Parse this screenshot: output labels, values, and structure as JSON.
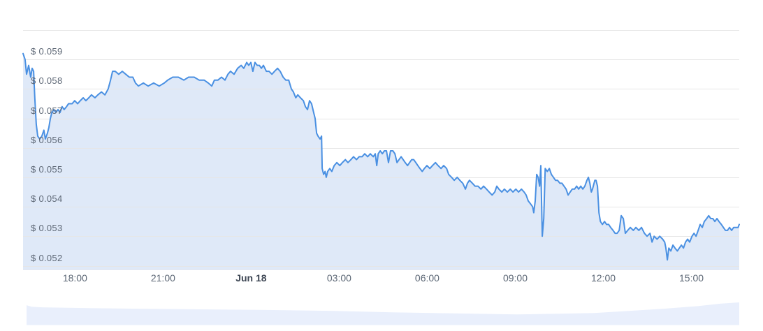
{
  "page": {
    "background": "#ffffff"
  },
  "chart_data": {
    "type": "area",
    "title": "",
    "legend": "none",
    "grid": "on",
    "currency_prefix": "$",
    "y_axis": {
      "min": 0.0519,
      "max": 0.06,
      "gridline_prices": [
        0.052,
        0.053,
        0.054,
        0.055,
        0.056,
        0.057,
        0.058,
        0.059,
        0.06
      ],
      "labels": [
        {
          "price": 0.059,
          "text": "$ 0.059"
        },
        {
          "price": 0.058,
          "text": "$ 0.058"
        },
        {
          "price": 0.057,
          "text": "$ 0.057"
        },
        {
          "price": 0.056,
          "text": "$ 0.056"
        },
        {
          "price": 0.055,
          "text": "$ 0.055"
        },
        {
          "price": 0.054,
          "text": "$ 0.054"
        },
        {
          "price": 0.053,
          "text": "$ 0.053"
        },
        {
          "price": 0.052,
          "text": "$ 0.052"
        }
      ]
    },
    "x_axis": {
      "total_hours": 24.4,
      "ticks": [
        {
          "hours": 1.77,
          "label": "18:00",
          "bold": false
        },
        {
          "hours": 4.77,
          "label": "21:00",
          "bold": false
        },
        {
          "hours": 7.77,
          "label": "Jun 18",
          "bold": true
        },
        {
          "hours": 10.77,
          "label": "03:00",
          "bold": false
        },
        {
          "hours": 13.77,
          "label": "06:00",
          "bold": false
        },
        {
          "hours": 16.77,
          "label": "09:00",
          "bold": false
        },
        {
          "hours": 19.77,
          "label": "12:00",
          "bold": false
        },
        {
          "hours": 22.77,
          "label": "15:00",
          "bold": false
        }
      ]
    },
    "series": {
      "name": "price",
      "points": [
        [
          0.0,
          0.0592
        ],
        [
          0.07,
          0.059
        ],
        [
          0.12,
          0.0585
        ],
        [
          0.19,
          0.0588
        ],
        [
          0.26,
          0.0584
        ],
        [
          0.31,
          0.0587
        ],
        [
          0.36,
          0.0586
        ],
        [
          0.4,
          0.0577
        ],
        [
          0.45,
          0.0568
        ],
        [
          0.5,
          0.0564
        ],
        [
          0.57,
          0.0563
        ],
        [
          0.64,
          0.0564
        ],
        [
          0.71,
          0.0566
        ],
        [
          0.76,
          0.0563
        ],
        [
          0.83,
          0.0565
        ],
        [
          0.88,
          0.0567
        ],
        [
          0.93,
          0.057
        ],
        [
          0.98,
          0.0572
        ],
        [
          1.05,
          0.0573
        ],
        [
          1.12,
          0.0572
        ],
        [
          1.19,
          0.0573
        ],
        [
          1.26,
          0.0572
        ],
        [
          1.33,
          0.0574
        ],
        [
          1.4,
          0.0573
        ],
        [
          1.48,
          0.0574
        ],
        [
          1.55,
          0.0575
        ],
        [
          1.67,
          0.0575
        ],
        [
          1.76,
          0.0576
        ],
        [
          1.86,
          0.0575
        ],
        [
          1.95,
          0.0576
        ],
        [
          2.05,
          0.0577
        ],
        [
          2.14,
          0.0576
        ],
        [
          2.24,
          0.0577
        ],
        [
          2.33,
          0.0578
        ],
        [
          2.45,
          0.0577
        ],
        [
          2.55,
          0.0578
        ],
        [
          2.67,
          0.0579
        ],
        [
          2.79,
          0.0578
        ],
        [
          2.9,
          0.058
        ],
        [
          2.98,
          0.0583
        ],
        [
          3.05,
          0.0586
        ],
        [
          3.14,
          0.0586
        ],
        [
          3.26,
          0.0585
        ],
        [
          3.38,
          0.0586
        ],
        [
          3.5,
          0.0585
        ],
        [
          3.62,
          0.0584
        ],
        [
          3.74,
          0.0584
        ],
        [
          3.83,
          0.0582
        ],
        [
          3.93,
          0.0581
        ],
        [
          4.1,
          0.0582
        ],
        [
          4.26,
          0.0581
        ],
        [
          4.45,
          0.0582
        ],
        [
          4.64,
          0.0581
        ],
        [
          4.81,
          0.0582
        ],
        [
          4.93,
          0.0583
        ],
        [
          5.1,
          0.0584
        ],
        [
          5.29,
          0.0584
        ],
        [
          5.48,
          0.0583
        ],
        [
          5.64,
          0.0584
        ],
        [
          5.83,
          0.0584
        ],
        [
          6.0,
          0.0583
        ],
        [
          6.17,
          0.0583
        ],
        [
          6.31,
          0.0582
        ],
        [
          6.43,
          0.0581
        ],
        [
          6.52,
          0.0583
        ],
        [
          6.64,
          0.0583
        ],
        [
          6.76,
          0.0584
        ],
        [
          6.88,
          0.0583
        ],
        [
          6.98,
          0.0585
        ],
        [
          7.07,
          0.0586
        ],
        [
          7.19,
          0.0585
        ],
        [
          7.31,
          0.0587
        ],
        [
          7.43,
          0.0588
        ],
        [
          7.52,
          0.0587
        ],
        [
          7.62,
          0.0589
        ],
        [
          7.69,
          0.0588
        ],
        [
          7.76,
          0.0589
        ],
        [
          7.83,
          0.0586
        ],
        [
          7.9,
          0.0589
        ],
        [
          7.98,
          0.0588
        ],
        [
          8.05,
          0.0588
        ],
        [
          8.12,
          0.0587
        ],
        [
          8.19,
          0.0588
        ],
        [
          8.29,
          0.0586
        ],
        [
          8.38,
          0.0586
        ],
        [
          8.48,
          0.0585
        ],
        [
          8.57,
          0.0586
        ],
        [
          8.67,
          0.0587
        ],
        [
          8.76,
          0.0586
        ],
        [
          8.86,
          0.0584
        ],
        [
          8.95,
          0.0583
        ],
        [
          9.05,
          0.0583
        ],
        [
          9.14,
          0.058
        ],
        [
          9.21,
          0.0579
        ],
        [
          9.29,
          0.0577
        ],
        [
          9.36,
          0.0578
        ],
        [
          9.45,
          0.0577
        ],
        [
          9.55,
          0.0576
        ],
        [
          9.62,
          0.0574
        ],
        [
          9.69,
          0.0573
        ],
        [
          9.76,
          0.0576
        ],
        [
          9.83,
          0.0575
        ],
        [
          9.9,
          0.0572
        ],
        [
          9.95,
          0.057
        ],
        [
          10.0,
          0.0565
        ],
        [
          10.05,
          0.0564
        ],
        [
          10.12,
          0.0563
        ],
        [
          10.17,
          0.0564
        ],
        [
          10.19,
          0.0553
        ],
        [
          10.24,
          0.0551
        ],
        [
          10.29,
          0.0552
        ],
        [
          10.33,
          0.055
        ],
        [
          10.38,
          0.0552
        ],
        [
          10.45,
          0.0553
        ],
        [
          10.52,
          0.0552
        ],
        [
          10.6,
          0.0554
        ],
        [
          10.69,
          0.0555
        ],
        [
          10.79,
          0.0554
        ],
        [
          10.88,
          0.0555
        ],
        [
          10.98,
          0.0556
        ],
        [
          11.07,
          0.0555
        ],
        [
          11.17,
          0.0556
        ],
        [
          11.26,
          0.0557
        ],
        [
          11.36,
          0.0556
        ],
        [
          11.45,
          0.0557
        ],
        [
          11.55,
          0.0557
        ],
        [
          11.64,
          0.0558
        ],
        [
          11.74,
          0.0557
        ],
        [
          11.83,
          0.0558
        ],
        [
          11.93,
          0.0557
        ],
        [
          12.0,
          0.0558
        ],
        [
          12.05,
          0.0554
        ],
        [
          12.1,
          0.0558
        ],
        [
          12.17,
          0.0559
        ],
        [
          12.24,
          0.0558
        ],
        [
          12.31,
          0.0559
        ],
        [
          12.38,
          0.0559
        ],
        [
          12.45,
          0.0555
        ],
        [
          12.52,
          0.0559
        ],
        [
          12.6,
          0.0559
        ],
        [
          12.67,
          0.0558
        ],
        [
          12.74,
          0.0555
        ],
        [
          12.81,
          0.0556
        ],
        [
          12.88,
          0.0557
        ],
        [
          12.95,
          0.0556
        ],
        [
          13.02,
          0.0555
        ],
        [
          13.1,
          0.0554
        ],
        [
          13.17,
          0.0555
        ],
        [
          13.24,
          0.0556
        ],
        [
          13.31,
          0.0556
        ],
        [
          13.38,
          0.0555
        ],
        [
          13.45,
          0.0554
        ],
        [
          13.52,
          0.0553
        ],
        [
          13.6,
          0.0552
        ],
        [
          13.67,
          0.0553
        ],
        [
          13.76,
          0.0554
        ],
        [
          13.86,
          0.0553
        ],
        [
          13.95,
          0.0554
        ],
        [
          14.05,
          0.0555
        ],
        [
          14.14,
          0.0554
        ],
        [
          14.24,
          0.0553
        ],
        [
          14.33,
          0.0554
        ],
        [
          14.43,
          0.0553
        ],
        [
          14.5,
          0.0551
        ],
        [
          14.6,
          0.055
        ],
        [
          14.69,
          0.0549
        ],
        [
          14.79,
          0.055
        ],
        [
          14.88,
          0.0549
        ],
        [
          14.98,
          0.0548
        ],
        [
          15.07,
          0.0546
        ],
        [
          15.14,
          0.0548
        ],
        [
          15.21,
          0.0549
        ],
        [
          15.31,
          0.0548
        ],
        [
          15.4,
          0.0547
        ],
        [
          15.5,
          0.0547
        ],
        [
          15.6,
          0.0546
        ],
        [
          15.69,
          0.0547
        ],
        [
          15.79,
          0.0546
        ],
        [
          15.88,
          0.0545
        ],
        [
          15.98,
          0.0544
        ],
        [
          16.07,
          0.0545
        ],
        [
          16.14,
          0.0547
        ],
        [
          16.21,
          0.0546
        ],
        [
          16.31,
          0.0545
        ],
        [
          16.4,
          0.0546
        ],
        [
          16.5,
          0.0545
        ],
        [
          16.6,
          0.0546
        ],
        [
          16.69,
          0.0545
        ],
        [
          16.79,
          0.0546
        ],
        [
          16.88,
          0.0545
        ],
        [
          16.98,
          0.0546
        ],
        [
          17.07,
          0.0545
        ],
        [
          17.14,
          0.0544
        ],
        [
          17.21,
          0.0542
        ],
        [
          17.29,
          0.0541
        ],
        [
          17.36,
          0.054
        ],
        [
          17.4,
          0.0538
        ],
        [
          17.45,
          0.0542
        ],
        [
          17.5,
          0.0551
        ],
        [
          17.55,
          0.055
        ],
        [
          17.6,
          0.0547
        ],
        [
          17.64,
          0.0554
        ],
        [
          17.69,
          0.053
        ],
        [
          17.74,
          0.0536
        ],
        [
          17.79,
          0.0553
        ],
        [
          17.86,
          0.0552
        ],
        [
          17.93,
          0.0553
        ],
        [
          18.0,
          0.0551
        ],
        [
          18.07,
          0.055
        ],
        [
          18.14,
          0.0549
        ],
        [
          18.21,
          0.0549
        ],
        [
          18.29,
          0.0548
        ],
        [
          18.36,
          0.0548
        ],
        [
          18.43,
          0.0547
        ],
        [
          18.5,
          0.0546
        ],
        [
          18.57,
          0.0544
        ],
        [
          18.64,
          0.0545
        ],
        [
          18.71,
          0.0546
        ],
        [
          18.79,
          0.0546
        ],
        [
          18.86,
          0.0547
        ],
        [
          18.93,
          0.0546
        ],
        [
          19.0,
          0.0547
        ],
        [
          19.07,
          0.0546
        ],
        [
          19.14,
          0.0547
        ],
        [
          19.21,
          0.0549
        ],
        [
          19.26,
          0.055
        ],
        [
          19.31,
          0.0548
        ],
        [
          19.36,
          0.0545
        ],
        [
          19.4,
          0.0546
        ],
        [
          19.48,
          0.0549
        ],
        [
          19.52,
          0.0549
        ],
        [
          19.57,
          0.0547
        ],
        [
          19.62,
          0.0538
        ],
        [
          19.67,
          0.0535
        ],
        [
          19.74,
          0.0534
        ],
        [
          19.81,
          0.0535
        ],
        [
          19.88,
          0.0534
        ],
        [
          19.95,
          0.0534
        ],
        [
          20.02,
          0.0533
        ],
        [
          20.1,
          0.0532
        ],
        [
          20.17,
          0.0531
        ],
        [
          20.24,
          0.0531
        ],
        [
          20.31,
          0.0532
        ],
        [
          20.38,
          0.0537
        ],
        [
          20.45,
          0.0536
        ],
        [
          20.52,
          0.0531
        ],
        [
          20.6,
          0.0532
        ],
        [
          20.69,
          0.0533
        ],
        [
          20.79,
          0.0532
        ],
        [
          20.88,
          0.0533
        ],
        [
          20.98,
          0.0532
        ],
        [
          21.07,
          0.0533
        ],
        [
          21.17,
          0.0531
        ],
        [
          21.26,
          0.053
        ],
        [
          21.36,
          0.0531
        ],
        [
          21.43,
          0.0528
        ],
        [
          21.5,
          0.053
        ],
        [
          21.6,
          0.0529
        ],
        [
          21.69,
          0.053
        ],
        [
          21.79,
          0.0529
        ],
        [
          21.86,
          0.0528
        ],
        [
          21.9,
          0.0526
        ],
        [
          21.95,
          0.0522
        ],
        [
          22.0,
          0.0526
        ],
        [
          22.07,
          0.0525
        ],
        [
          22.14,
          0.0527
        ],
        [
          22.21,
          0.0526
        ],
        [
          22.29,
          0.0525
        ],
        [
          22.36,
          0.0526
        ],
        [
          22.43,
          0.0527
        ],
        [
          22.5,
          0.0526
        ],
        [
          22.57,
          0.0528
        ],
        [
          22.64,
          0.0529
        ],
        [
          22.71,
          0.0528
        ],
        [
          22.79,
          0.053
        ],
        [
          22.86,
          0.0531
        ],
        [
          22.93,
          0.053
        ],
        [
          23.0,
          0.0532
        ],
        [
          23.07,
          0.0534
        ],
        [
          23.14,
          0.0533
        ],
        [
          23.21,
          0.0535
        ],
        [
          23.29,
          0.0536
        ],
        [
          23.36,
          0.0537
        ],
        [
          23.43,
          0.0536
        ],
        [
          23.5,
          0.0536
        ],
        [
          23.57,
          0.0535
        ],
        [
          23.64,
          0.0536
        ],
        [
          23.71,
          0.0535
        ],
        [
          23.79,
          0.0534
        ],
        [
          23.86,
          0.0533
        ],
        [
          23.93,
          0.0532
        ],
        [
          24.0,
          0.0532
        ],
        [
          24.07,
          0.0533
        ],
        [
          24.14,
          0.0532
        ],
        [
          24.21,
          0.0533
        ],
        [
          24.29,
          0.0533
        ],
        [
          24.36,
          0.0533
        ],
        [
          24.4,
          0.0534
        ]
      ]
    },
    "navigator": {
      "points": [
        [
          0.0,
          0.875
        ],
        [
          0.007,
          0.81
        ],
        [
          0.022,
          0.78
        ],
        [
          0.08,
          0.75
        ],
        [
          0.159,
          0.72
        ],
        [
          0.257,
          0.69
        ],
        [
          0.355,
          0.66
        ],
        [
          0.433,
          0.625
        ],
        [
          0.473,
          0.59
        ],
        [
          0.512,
          0.56
        ],
        [
          0.571,
          0.53
        ],
        [
          0.629,
          0.5
        ],
        [
          0.688,
          0.47
        ],
        [
          0.747,
          0.5
        ],
        [
          0.796,
          0.53
        ],
        [
          0.845,
          0.625
        ],
        [
          0.894,
          0.72
        ],
        [
          0.943,
          0.84
        ],
        [
          0.973,
          0.94
        ],
        [
          1.0,
          1.0
        ]
      ]
    },
    "colors": {
      "line": "#4a90e2",
      "fill": "#dfe9f8",
      "navigator_fill": "#e9effc",
      "gridline": "#e6e6e6",
      "axis_line": "#ccd6eb",
      "y_label": "#5d6775",
      "x_label": "#5d6876",
      "x_label_bold": "#3e4754"
    }
  }
}
